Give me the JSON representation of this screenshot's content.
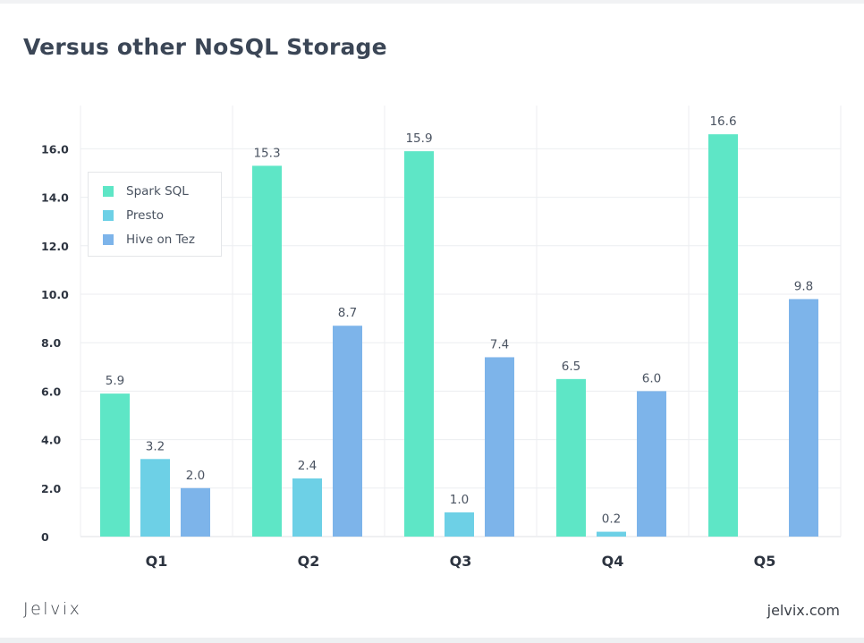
{
  "title": "Versus other NoSQL Storage",
  "brand": {
    "logo_text": "Jelvix",
    "site": "jelvix.com"
  },
  "chart_data": {
    "type": "bar",
    "title": "Versus other NoSQL Storage",
    "categories": [
      "Q1",
      "Q2",
      "Q3",
      "Q4",
      "Q5"
    ],
    "series": [
      {
        "name": "Spark SQL",
        "color": "#5ee6c6",
        "values": [
          5.9,
          15.3,
          15.9,
          6.5,
          16.6
        ],
        "labels": [
          "5.9",
          "15.3",
          "15.9",
          "6.5",
          "16.6"
        ]
      },
      {
        "name": "Presto",
        "color": "#6dd0e6",
        "values": [
          3.2,
          2.4,
          1.0,
          0.2,
          null
        ],
        "labels": [
          "3.2",
          "2.4",
          "1.0",
          "0.2",
          null
        ]
      },
      {
        "name": "Hive on Tez",
        "color": "#7db4ea",
        "values": [
          2.0,
          8.7,
          7.4,
          6.0,
          9.8
        ],
        "labels": [
          "2.0",
          "8.7",
          "7.4",
          "6.0",
          "9.8"
        ]
      }
    ],
    "yticks": [
      "0",
      "2.0",
      "4.0",
      "6.0",
      "8.0",
      "10.0",
      "12.0",
      "14.0",
      "16.0"
    ],
    "ylim": [
      0,
      16.6
    ],
    "legend_position": "top-left",
    "grid": true
  }
}
